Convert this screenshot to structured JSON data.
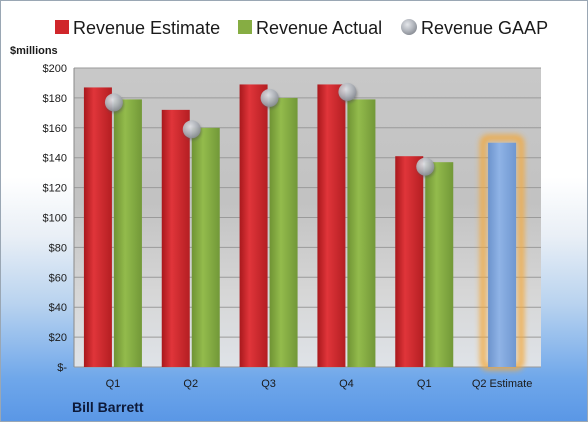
{
  "chart_data": {
    "type": "bar",
    "company": "Bill Barrett",
    "ylabel": "$millions",
    "ylim": [
      0,
      200
    ],
    "yticks": [
      0,
      20,
      40,
      60,
      80,
      100,
      120,
      140,
      160,
      180,
      200
    ],
    "ytick_labels": [
      "$-",
      "$20",
      "$40",
      "$60",
      "$80",
      "$100",
      "$120",
      "$140",
      "$160",
      "$180",
      "$200"
    ],
    "categories": [
      "Q1",
      "Q2",
      "Q3",
      "Q4",
      "Q1",
      "Q2 Estimate"
    ],
    "series": [
      {
        "name": "Revenue Estimate",
        "kind": "bar",
        "values": [
          187,
          172,
          189,
          189,
          141,
          null
        ]
      },
      {
        "name": "Revenue Actual",
        "kind": "bar",
        "values": [
          179,
          160,
          180,
          179,
          137,
          null
        ]
      },
      {
        "name": "Revenue GAAP",
        "kind": "marker",
        "values": [
          177,
          159,
          180,
          184,
          134,
          null
        ]
      },
      {
        "name": "Q2 Estimate",
        "kind": "bar-highlight",
        "values": [
          null,
          null,
          null,
          null,
          null,
          150
        ]
      }
    ],
    "legend_position": "top",
    "grid": true,
    "colors": {
      "estimate": "#d0262b",
      "actual": "#86ad43",
      "gaap": "#b8bcc4",
      "highlight": "#7ea4da",
      "glow": "#f4a93a"
    }
  }
}
